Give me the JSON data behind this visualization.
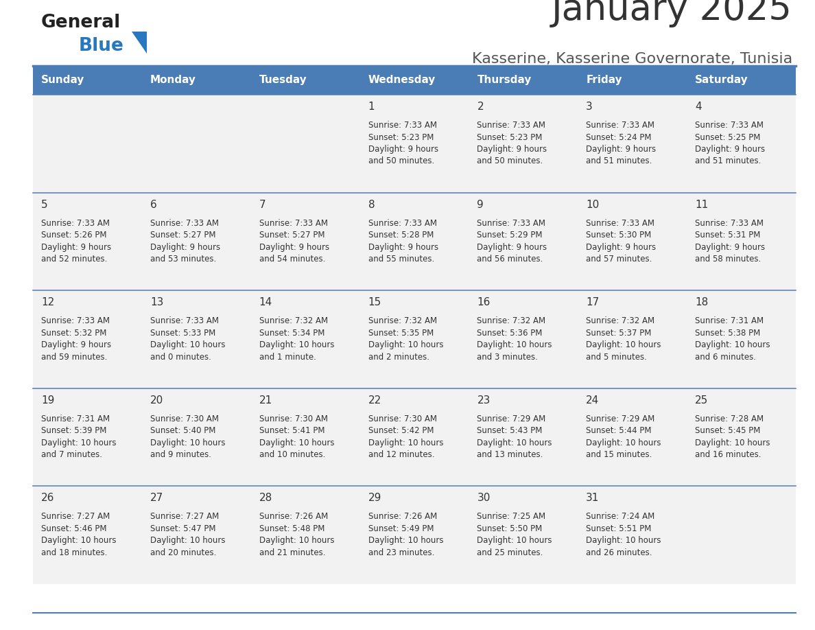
{
  "title": "January 2025",
  "subtitle": "Kasserine, Kasserine Governorate, Tunisia",
  "days_of_week": [
    "Sunday",
    "Monday",
    "Tuesday",
    "Wednesday",
    "Thursday",
    "Friday",
    "Saturday"
  ],
  "header_bg": "#4a7cb5",
  "header_text": "#ffffff",
  "row_bg": "#f2f2f2",
  "cell_text_color": "#333333",
  "day_number_color": "#333333",
  "divider_color": "#4a7cb5",
  "title_color": "#333333",
  "subtitle_color": "#555555",
  "logo_general_color": "#222222",
  "logo_blue_color": "#2878c0",
  "logo_triangle_color": "#2878c0",
  "calendar_data": [
    [
      {
        "day": "",
        "sunrise": "",
        "sunset": "",
        "daylight": ""
      },
      {
        "day": "",
        "sunrise": "",
        "sunset": "",
        "daylight": ""
      },
      {
        "day": "",
        "sunrise": "",
        "sunset": "",
        "daylight": ""
      },
      {
        "day": "1",
        "sunrise": "7:33 AM",
        "sunset": "5:23 PM",
        "daylight": "9 hours and 50 minutes."
      },
      {
        "day": "2",
        "sunrise": "7:33 AM",
        "sunset": "5:23 PM",
        "daylight": "9 hours and 50 minutes."
      },
      {
        "day": "3",
        "sunrise": "7:33 AM",
        "sunset": "5:24 PM",
        "daylight": "9 hours and 51 minutes."
      },
      {
        "day": "4",
        "sunrise": "7:33 AM",
        "sunset": "5:25 PM",
        "daylight": "9 hours and 51 minutes."
      }
    ],
    [
      {
        "day": "5",
        "sunrise": "7:33 AM",
        "sunset": "5:26 PM",
        "daylight": "9 hours and 52 minutes."
      },
      {
        "day": "6",
        "sunrise": "7:33 AM",
        "sunset": "5:27 PM",
        "daylight": "9 hours and 53 minutes."
      },
      {
        "day": "7",
        "sunrise": "7:33 AM",
        "sunset": "5:27 PM",
        "daylight": "9 hours and 54 minutes."
      },
      {
        "day": "8",
        "sunrise": "7:33 AM",
        "sunset": "5:28 PM",
        "daylight": "9 hours and 55 minutes."
      },
      {
        "day": "9",
        "sunrise": "7:33 AM",
        "sunset": "5:29 PM",
        "daylight": "9 hours and 56 minutes."
      },
      {
        "day": "10",
        "sunrise": "7:33 AM",
        "sunset": "5:30 PM",
        "daylight": "9 hours and 57 minutes."
      },
      {
        "day": "11",
        "sunrise": "7:33 AM",
        "sunset": "5:31 PM",
        "daylight": "9 hours and 58 minutes."
      }
    ],
    [
      {
        "day": "12",
        "sunrise": "7:33 AM",
        "sunset": "5:32 PM",
        "daylight": "9 hours and 59 minutes."
      },
      {
        "day": "13",
        "sunrise": "7:33 AM",
        "sunset": "5:33 PM",
        "daylight": "10 hours and 0 minutes."
      },
      {
        "day": "14",
        "sunrise": "7:32 AM",
        "sunset": "5:34 PM",
        "daylight": "10 hours and 1 minute."
      },
      {
        "day": "15",
        "sunrise": "7:32 AM",
        "sunset": "5:35 PM",
        "daylight": "10 hours and 2 minutes."
      },
      {
        "day": "16",
        "sunrise": "7:32 AM",
        "sunset": "5:36 PM",
        "daylight": "10 hours and 3 minutes."
      },
      {
        "day": "17",
        "sunrise": "7:32 AM",
        "sunset": "5:37 PM",
        "daylight": "10 hours and 5 minutes."
      },
      {
        "day": "18",
        "sunrise": "7:31 AM",
        "sunset": "5:38 PM",
        "daylight": "10 hours and 6 minutes."
      }
    ],
    [
      {
        "day": "19",
        "sunrise": "7:31 AM",
        "sunset": "5:39 PM",
        "daylight": "10 hours and 7 minutes."
      },
      {
        "day": "20",
        "sunrise": "7:30 AM",
        "sunset": "5:40 PM",
        "daylight": "10 hours and 9 minutes."
      },
      {
        "day": "21",
        "sunrise": "7:30 AM",
        "sunset": "5:41 PM",
        "daylight": "10 hours and 10 minutes."
      },
      {
        "day": "22",
        "sunrise": "7:30 AM",
        "sunset": "5:42 PM",
        "daylight": "10 hours and 12 minutes."
      },
      {
        "day": "23",
        "sunrise": "7:29 AM",
        "sunset": "5:43 PM",
        "daylight": "10 hours and 13 minutes."
      },
      {
        "day": "24",
        "sunrise": "7:29 AM",
        "sunset": "5:44 PM",
        "daylight": "10 hours and 15 minutes."
      },
      {
        "day": "25",
        "sunrise": "7:28 AM",
        "sunset": "5:45 PM",
        "daylight": "10 hours and 16 minutes."
      }
    ],
    [
      {
        "day": "26",
        "sunrise": "7:27 AM",
        "sunset": "5:46 PM",
        "daylight": "10 hours and 18 minutes."
      },
      {
        "day": "27",
        "sunrise": "7:27 AM",
        "sunset": "5:47 PM",
        "daylight": "10 hours and 20 minutes."
      },
      {
        "day": "28",
        "sunrise": "7:26 AM",
        "sunset": "5:48 PM",
        "daylight": "10 hours and 21 minutes."
      },
      {
        "day": "29",
        "sunrise": "7:26 AM",
        "sunset": "5:49 PM",
        "daylight": "10 hours and 23 minutes."
      },
      {
        "day": "30",
        "sunrise": "7:25 AM",
        "sunset": "5:50 PM",
        "daylight": "10 hours and 25 minutes."
      },
      {
        "day": "31",
        "sunrise": "7:24 AM",
        "sunset": "5:51 PM",
        "daylight": "10 hours and 26 minutes."
      },
      {
        "day": "",
        "sunrise": "",
        "sunset": "",
        "daylight": ""
      }
    ]
  ]
}
